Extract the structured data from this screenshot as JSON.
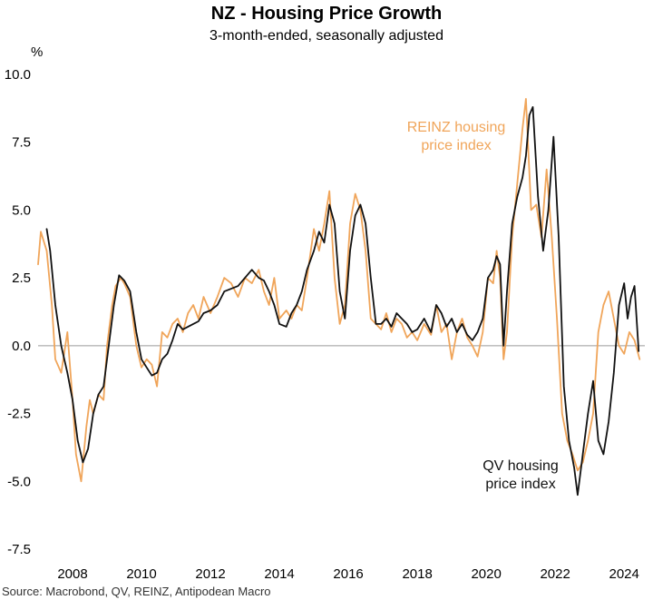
{
  "chart_data": {
    "type": "line",
    "title": "NZ - Housing Price Growth",
    "subtitle": "3-month-ended, seasonally adjusted",
    "ylabel": "%",
    "xlabel": "",
    "ylim": [
      -7.5,
      10.0
    ],
    "xlim": [
      2007.0,
      2024.6
    ],
    "yticks": [
      "10.0",
      "7.5",
      "5.0",
      "2.5",
      "0.0",
      "-2.5",
      "-5.0",
      "-7.5"
    ],
    "ytick_values": [
      10.0,
      7.5,
      5.0,
      2.5,
      0.0,
      -2.5,
      -5.0,
      -7.5
    ],
    "xticks": [
      "2008",
      "2010",
      "2012",
      "2014",
      "2016",
      "2018",
      "2020",
      "2022",
      "2024"
    ],
    "xtick_values": [
      2008,
      2010,
      2012,
      2014,
      2016,
      2018,
      2020,
      2022,
      2024
    ],
    "grid": false,
    "zero_line": true,
    "source": "Source: Macrobond, QV, REINZ, Antipodean Macro",
    "series": [
      {
        "name": "REINZ housing price index",
        "label": [
          "REINZ housing",
          "price index"
        ],
        "color": "#F0A55A",
        "x": [
          2007.0,
          2007.08,
          2007.25,
          2007.4,
          2007.5,
          2007.67,
          2007.85,
          2008.0,
          2008.1,
          2008.25,
          2008.4,
          2008.5,
          2008.6,
          2008.75,
          2008.9,
          2009.0,
          2009.15,
          2009.25,
          2009.4,
          2009.5,
          2009.67,
          2009.85,
          2010.0,
          2010.15,
          2010.3,
          2010.45,
          2010.6,
          2010.75,
          2010.9,
          2011.05,
          2011.2,
          2011.35,
          2011.5,
          2011.65,
          2011.8,
          2012.0,
          2012.2,
          2012.4,
          2012.6,
          2012.8,
          2013.0,
          2013.2,
          2013.4,
          2013.55,
          2013.7,
          2013.85,
          2014.0,
          2014.2,
          2014.35,
          2014.5,
          2014.65,
          2014.8,
          2015.0,
          2015.15,
          2015.3,
          2015.45,
          2015.6,
          2015.75,
          2015.9,
          2016.05,
          2016.2,
          2016.35,
          2016.5,
          2016.65,
          2016.8,
          2016.95,
          2017.1,
          2017.25,
          2017.4,
          2017.55,
          2017.7,
          2017.85,
          2018.0,
          2018.2,
          2018.4,
          2018.55,
          2018.7,
          2018.85,
          2019.0,
          2019.15,
          2019.3,
          2019.45,
          2019.6,
          2019.75,
          2019.9,
          2020.05,
          2020.2,
          2020.3,
          2020.4,
          2020.5,
          2020.6,
          2020.75,
          2020.9,
          2021.05,
          2021.15,
          2021.3,
          2021.45,
          2021.6,
          2021.75,
          2021.9,
          2022.05,
          2022.2,
          2022.35,
          2022.5,
          2022.65,
          2022.8,
          2022.95,
          2023.1,
          2023.25,
          2023.4,
          2023.55,
          2023.7,
          2023.85,
          2024.0,
          2024.15,
          2024.3,
          2024.45
        ],
        "values": [
          3.0,
          4.2,
          3.5,
          1.5,
          -0.5,
          -1.0,
          0.5,
          -2.0,
          -4.0,
          -5.0,
          -3.0,
          -2.0,
          -2.5,
          -1.8,
          -2.0,
          0.0,
          1.5,
          2.2,
          2.5,
          2.3,
          1.8,
          0.0,
          -0.8,
          -0.5,
          -0.7,
          -1.5,
          0.5,
          0.3,
          0.8,
          1.0,
          0.5,
          1.2,
          1.5,
          1.0,
          1.8,
          1.2,
          1.8,
          2.5,
          2.3,
          1.8,
          2.5,
          2.3,
          2.8,
          2.0,
          1.5,
          2.5,
          1.0,
          1.3,
          1.0,
          1.5,
          1.3,
          2.5,
          4.3,
          3.5,
          4.5,
          5.7,
          2.5,
          0.8,
          1.5,
          4.5,
          5.6,
          5.0,
          3.5,
          1.0,
          0.8,
          0.6,
          1.2,
          0.5,
          1.0,
          0.8,
          0.3,
          0.5,
          0.2,
          0.8,
          0.4,
          1.5,
          0.5,
          0.8,
          -0.5,
          0.5,
          1.0,
          0.3,
          0.0,
          -0.4,
          0.5,
          2.5,
          2.3,
          3.5,
          2.5,
          -0.5,
          0.5,
          4.0,
          6.0,
          8.0,
          9.1,
          5.0,
          5.2,
          4.0,
          6.5,
          4.0,
          1.0,
          -2.5,
          -3.5,
          -4.0,
          -4.6,
          -4.3,
          -3.5,
          -2.5,
          0.5,
          1.5,
          2.0,
          1.0,
          0.0,
          -0.3,
          0.5,
          0.2,
          -0.5
        ],
        "text_values": [
          "3.0",
          "4.2",
          "3.5",
          "1.5",
          "-0.5",
          "-1.0",
          "0.5",
          "-2.0",
          "-4.0",
          "-5.0",
          "-3.0",
          "-2.0",
          "-2.5",
          "-1.8",
          "-2.0",
          "0.0",
          "1.5",
          "2.2",
          "2.5",
          "2.3",
          "1.8",
          "0.0",
          "-0.8",
          "-0.5",
          "-0.7",
          "-1.5",
          "0.5",
          "0.3",
          "0.8",
          "1.0",
          "0.5",
          "1.2",
          "1.5",
          "1.0",
          "1.8",
          "1.2",
          "1.8",
          "2.5",
          "2.3",
          "1.8",
          "2.5",
          "2.3",
          "2.8",
          "2.0",
          "1.5",
          "2.5",
          "1.0",
          "1.3",
          "1.0",
          "1.5",
          "1.3",
          "2.5",
          "4.3",
          "3.5",
          "4.5",
          "5.7",
          "2.5",
          "0.8",
          "1.5",
          "4.5",
          "5.6",
          "5.0",
          "3.5",
          "1.0",
          "0.8",
          "0.6",
          "1.2",
          "0.5",
          "1.0",
          "0.8",
          "0.3",
          "0.5",
          "0.2",
          "0.8",
          "0.4",
          "1.5",
          "0.5",
          "0.8",
          "-0.5",
          "0.5",
          "1.0",
          "0.3",
          "0.0",
          "-0.4",
          "0.5",
          "2.5",
          "2.3",
          "3.5",
          "2.5",
          "-0.5",
          "0.5",
          "4.0",
          "6.0",
          "8.0",
          "9.1",
          "5.0",
          "5.2",
          "4.0",
          "6.5",
          "4.0",
          "1.0",
          "-2.5",
          "-3.5",
          "-4.0",
          "-4.6",
          "-4.3",
          "-3.5",
          "-2.5",
          "0.5",
          "1.5",
          "2.0",
          "1.0",
          "0.0",
          "-0.3",
          "0.5",
          "0.2",
          "-0.5"
        ]
      },
      {
        "name": "QV housing price index",
        "label": [
          "QV housing",
          "price index"
        ],
        "color": "#111111",
        "x": [
          2007.25,
          2007.35,
          2007.5,
          2007.67,
          2007.85,
          2008.0,
          2008.15,
          2008.3,
          2008.45,
          2008.6,
          2008.75,
          2008.9,
          2009.05,
          2009.2,
          2009.35,
          2009.5,
          2009.67,
          2009.85,
          2010.0,
          2010.15,
          2010.3,
          2010.45,
          2010.6,
          2010.75,
          2010.9,
          2011.05,
          2011.2,
          2011.35,
          2011.5,
          2011.65,
          2011.8,
          2012.0,
          2012.2,
          2012.4,
          2012.6,
          2012.8,
          2013.0,
          2013.2,
          2013.4,
          2013.55,
          2013.7,
          2013.85,
          2014.0,
          2014.2,
          2014.35,
          2014.5,
          2014.65,
          2014.8,
          2015.0,
          2015.15,
          2015.3,
          2015.45,
          2015.6,
          2015.75,
          2015.9,
          2016.05,
          2016.2,
          2016.35,
          2016.5,
          2016.65,
          2016.8,
          2016.95,
          2017.1,
          2017.25,
          2017.4,
          2017.55,
          2017.7,
          2017.85,
          2018.0,
          2018.2,
          2018.4,
          2018.55,
          2018.7,
          2018.85,
          2019.0,
          2019.15,
          2019.3,
          2019.45,
          2019.6,
          2019.75,
          2019.9,
          2020.05,
          2020.2,
          2020.3,
          2020.4,
          2020.5,
          2020.6,
          2020.75,
          2020.9,
          2021.05,
          2021.15,
          2021.25,
          2021.35,
          2021.5,
          2021.65,
          2021.8,
          2021.95,
          2022.1,
          2022.25,
          2022.4,
          2022.55,
          2022.65,
          2022.8,
          2022.95,
          2023.1,
          2023.25,
          2023.4,
          2023.55,
          2023.7,
          2023.85,
          2024.0,
          2024.1,
          2024.2,
          2024.3,
          2024.42
        ],
        "values": [
          4.3,
          3.5,
          1.5,
          0.0,
          -1.0,
          -2.0,
          -3.5,
          -4.3,
          -3.8,
          -2.5,
          -1.8,
          -1.5,
          0.0,
          1.5,
          2.6,
          2.4,
          2.0,
          0.5,
          -0.5,
          -0.8,
          -1.1,
          -1.0,
          -0.5,
          -0.3,
          0.2,
          0.8,
          0.6,
          0.7,
          0.8,
          0.9,
          1.2,
          1.3,
          1.5,
          2.0,
          2.1,
          2.2,
          2.5,
          2.8,
          2.5,
          2.4,
          2.0,
          1.5,
          0.8,
          0.7,
          1.2,
          1.5,
          2.0,
          2.8,
          3.5,
          4.2,
          3.8,
          5.2,
          4.5,
          2.0,
          1.0,
          3.5,
          4.8,
          5.2,
          4.5,
          2.5,
          0.8,
          0.8,
          1.0,
          0.7,
          1.2,
          1.0,
          0.8,
          0.5,
          0.6,
          1.0,
          0.5,
          1.5,
          1.2,
          0.7,
          1.0,
          0.5,
          0.8,
          0.4,
          0.2,
          0.5,
          1.0,
          2.5,
          2.8,
          3.3,
          3.0,
          0.0,
          2.0,
          4.5,
          5.5,
          6.2,
          7.0,
          8.5,
          8.8,
          5.5,
          3.5,
          5.0,
          7.7,
          4.0,
          -1.5,
          -3.5,
          -4.5,
          -5.5,
          -4.0,
          -2.5,
          -1.3,
          -3.5,
          -4.0,
          -2.8,
          -1.0,
          1.5,
          2.3,
          1.0,
          1.8,
          2.2,
          -0.2
        ],
        "text_values": [
          "4.3",
          "3.5",
          "1.5",
          "0.0",
          "-1.0",
          "-2.0",
          "-3.5",
          "-4.3",
          "-3.8",
          "-2.5",
          "-1.8",
          "-1.5",
          "0.0",
          "1.5",
          "2.6",
          "2.4",
          "2.0",
          "0.5",
          "-0.5",
          "-0.8",
          "-1.1",
          "-1.0",
          "-0.5",
          "-0.3",
          "0.2",
          "0.8",
          "0.6",
          "0.7",
          "0.8",
          "0.9",
          "1.2",
          "1.3",
          "1.5",
          "2.0",
          "2.1",
          "2.2",
          "2.5",
          "2.8",
          "2.5",
          "2.4",
          "2.0",
          "1.5",
          "0.8",
          "0.7",
          "1.2",
          "1.5",
          "2.0",
          "2.8",
          "3.5",
          "4.2",
          "3.8",
          "5.2",
          "4.5",
          "2.0",
          "1.0",
          "3.5",
          "4.8",
          "5.2",
          "4.5",
          "2.5",
          "0.8",
          "0.8",
          "1.0",
          "0.7",
          "1.2",
          "1.0",
          "0.8",
          "0.5",
          "0.6",
          "1.0",
          "0.5",
          "1.5",
          "1.2",
          "0.7",
          "1.0",
          "0.5",
          "0.8",
          "0.4",
          "0.2",
          "0.5",
          "1.0",
          "2.5",
          "2.8",
          "3.3",
          "3.0",
          "0.0",
          "2.0",
          "4.5",
          "5.5",
          "6.2",
          "7.0",
          "8.5",
          "8.8",
          "5.5",
          "3.5",
          "5.0",
          "7.7",
          "4.0",
          "-1.5",
          "-3.5",
          "-4.5",
          "-5.5",
          "-4.0",
          "-2.5",
          "-1.3",
          "-3.5",
          "-4.0",
          "-2.8",
          "-1.0",
          "1.5",
          "2.3",
          "1.0",
          "1.8",
          "2.2",
          "-0.2"
        ]
      }
    ]
  }
}
